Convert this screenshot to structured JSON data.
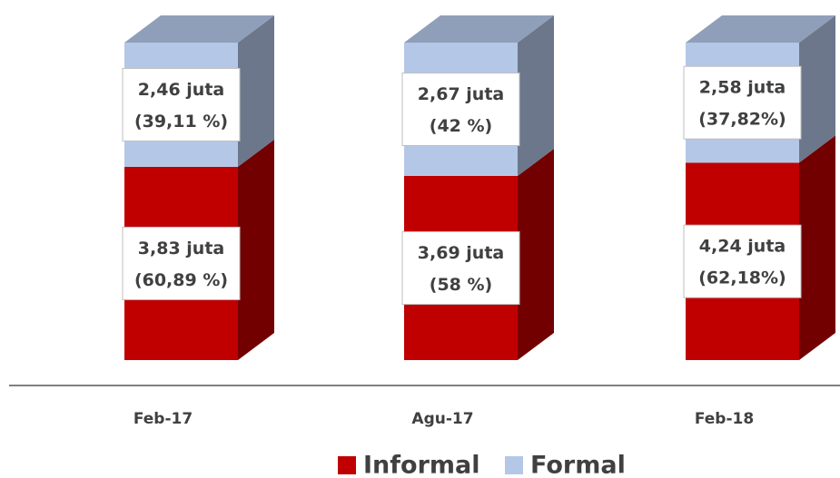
{
  "chart_data": {
    "type": "bar3d_stacked",
    "categories": [
      "Feb-17",
      "Agu-17",
      "Feb-18"
    ],
    "series": [
      {
        "name": "Informal",
        "color": "#c00000",
        "values": [
          60.89,
          58,
          62.18
        ],
        "value_labels": [
          [
            "3,83 juta",
            "(60,89 %)"
          ],
          [
            "3,69 juta",
            "(58 %)"
          ],
          [
            "4,24 juta",
            "(62,18%)"
          ]
        ]
      },
      {
        "name": "Formal",
        "color": "#b4c7e7",
        "values": [
          39.11,
          42,
          37.82
        ],
        "value_labels": [
          [
            "2,46 juta",
            "(39,11 %)"
          ],
          [
            "2,67 juta",
            "(42 %)"
          ],
          [
            "2,58 juta",
            "(37,82%)"
          ]
        ]
      }
    ],
    "ylim": [
      0,
      100
    ],
    "legend": "bottom"
  }
}
